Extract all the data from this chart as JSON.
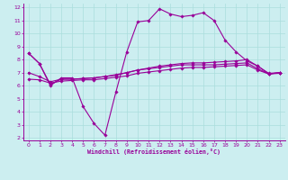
{
  "xlabel": "Windchill (Refroidissement éolien,°C)",
  "bg_color": "#cceef0",
  "grid_color": "#aadddd",
  "line_color": "#990099",
  "xlim": [
    -0.5,
    23.5
  ],
  "ylim": [
    1.8,
    12.3
  ],
  "xticks": [
    0,
    1,
    2,
    3,
    4,
    5,
    6,
    7,
    8,
    9,
    10,
    11,
    12,
    13,
    14,
    15,
    16,
    17,
    18,
    19,
    20,
    21,
    22,
    23
  ],
  "yticks": [
    2,
    3,
    4,
    5,
    6,
    7,
    8,
    9,
    10,
    11,
    12
  ],
  "line1_x": [
    0,
    1,
    2,
    3,
    4,
    5,
    6,
    7,
    8,
    9,
    10,
    11,
    12,
    13,
    14,
    15,
    16,
    17,
    18,
    19,
    20,
    21,
    22,
    23
  ],
  "line1_y": [
    8.5,
    7.7,
    6.0,
    6.6,
    6.6,
    4.4,
    3.1,
    2.2,
    5.5,
    8.6,
    10.9,
    11.0,
    11.9,
    11.5,
    11.3,
    11.4,
    11.6,
    11.0,
    9.5,
    8.6,
    7.9,
    7.5,
    6.9,
    7.0
  ],
  "line2_x": [
    0,
    1,
    2,
    3,
    4,
    5,
    6,
    7,
    8,
    9,
    10,
    11,
    12,
    13,
    14,
    15,
    16,
    17,
    18,
    19,
    20,
    21,
    22,
    23
  ],
  "line2_y": [
    8.5,
    7.7,
    6.1,
    6.5,
    6.5,
    6.55,
    6.6,
    6.7,
    6.8,
    7.0,
    7.2,
    7.35,
    7.5,
    7.6,
    7.7,
    7.75,
    7.75,
    7.8,
    7.85,
    7.9,
    8.0,
    7.5,
    6.95,
    7.0
  ],
  "line3_x": [
    0,
    1,
    2,
    3,
    4,
    5,
    6,
    7,
    8,
    9,
    10,
    11,
    12,
    13,
    14,
    15,
    16,
    17,
    18,
    19,
    20,
    21,
    22,
    23
  ],
  "line3_y": [
    6.5,
    6.45,
    6.2,
    6.35,
    6.4,
    6.45,
    6.45,
    6.55,
    6.65,
    6.75,
    6.95,
    7.05,
    7.15,
    7.25,
    7.35,
    7.4,
    7.4,
    7.45,
    7.5,
    7.55,
    7.6,
    7.2,
    6.9,
    6.95
  ],
  "line4_x": [
    0,
    1,
    2,
    3,
    4,
    5,
    6,
    7,
    8,
    9,
    10,
    11,
    12,
    13,
    14,
    15,
    16,
    17,
    18,
    19,
    20,
    21,
    22,
    23
  ],
  "line4_y": [
    7.0,
    6.7,
    6.3,
    6.5,
    6.5,
    6.55,
    6.6,
    6.7,
    6.85,
    7.0,
    7.2,
    7.3,
    7.4,
    7.5,
    7.6,
    7.6,
    7.6,
    7.6,
    7.65,
    7.7,
    7.75,
    7.3,
    6.9,
    7.0
  ]
}
